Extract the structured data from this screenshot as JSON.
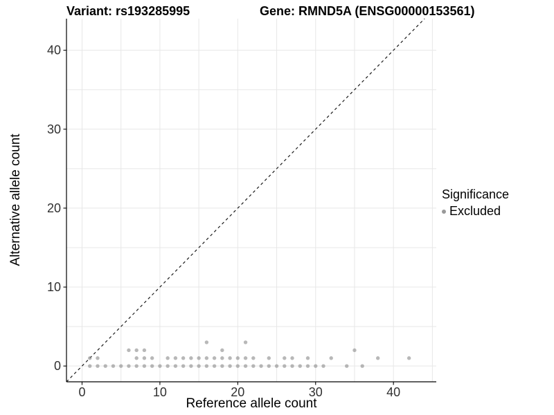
{
  "page": {
    "background": "#ffffff"
  },
  "chart_data": {
    "type": "scatter",
    "title_left": "Variant: rs193285995",
    "title_right": "Gene: RMND5A (ENSG00000153561)",
    "xlabel": "Reference allele count",
    "ylabel": "Alternative allele count",
    "xlim": [
      -2,
      45.5
    ],
    "ylim": [
      -2,
      44
    ],
    "xticks": [
      0,
      10,
      20,
      30,
      40
    ],
    "yticks": [
      0,
      10,
      20,
      30,
      40
    ],
    "grid": true,
    "grid_step": 5,
    "grid_color": "#e7e7e7",
    "axis_color": "#000000",
    "tick_label_color": "#303030",
    "identity_line": {
      "style": "dashed",
      "slope": 1,
      "intercept": 0,
      "color": "#1a1a1a"
    },
    "point_color": "#8c8c8c",
    "point_opacity": 0.62,
    "point_radius": 2.7,
    "legend": {
      "title": "Significance",
      "position": "right",
      "entries": [
        {
          "label": "Excluded",
          "color": "#999999"
        }
      ]
    },
    "series": [
      {
        "name": "Excluded",
        "points": [
          [
            1,
            0
          ],
          [
            2,
            0
          ],
          [
            3,
            0
          ],
          [
            4,
            0
          ],
          [
            5,
            0
          ],
          [
            6,
            0
          ],
          [
            7,
            0
          ],
          [
            8,
            0
          ],
          [
            9,
            0
          ],
          [
            10,
            0
          ],
          [
            11,
            0
          ],
          [
            12,
            0
          ],
          [
            13,
            0
          ],
          [
            14,
            0
          ],
          [
            15,
            0
          ],
          [
            16,
            0
          ],
          [
            17,
            0
          ],
          [
            18,
            0
          ],
          [
            19,
            0
          ],
          [
            20,
            0
          ],
          [
            21,
            0
          ],
          [
            22,
            0
          ],
          [
            23,
            0
          ],
          [
            24,
            0
          ],
          [
            25,
            0
          ],
          [
            26,
            0
          ],
          [
            27,
            0
          ],
          [
            28,
            0
          ],
          [
            29,
            0
          ],
          [
            30,
            0
          ],
          [
            31,
            0
          ],
          [
            34,
            0
          ],
          [
            36,
            0
          ],
          [
            1,
            1
          ],
          [
            2,
            1
          ],
          [
            7,
            1
          ],
          [
            8,
            1
          ],
          [
            9,
            1
          ],
          [
            11,
            1
          ],
          [
            12,
            1
          ],
          [
            13,
            1
          ],
          [
            14,
            1
          ],
          [
            15,
            1
          ],
          [
            16,
            1
          ],
          [
            17,
            1
          ],
          [
            18,
            1
          ],
          [
            19,
            1
          ],
          [
            20,
            1
          ],
          [
            21,
            1
          ],
          [
            22,
            1
          ],
          [
            24,
            1
          ],
          [
            26,
            1
          ],
          [
            27,
            1
          ],
          [
            29,
            1
          ],
          [
            32,
            1
          ],
          [
            38,
            1
          ],
          [
            42,
            1
          ],
          [
            6,
            2
          ],
          [
            7,
            2
          ],
          [
            8,
            2
          ],
          [
            18,
            2
          ],
          [
            35,
            2
          ],
          [
            16,
            3
          ],
          [
            21,
            3
          ]
        ]
      }
    ]
  }
}
